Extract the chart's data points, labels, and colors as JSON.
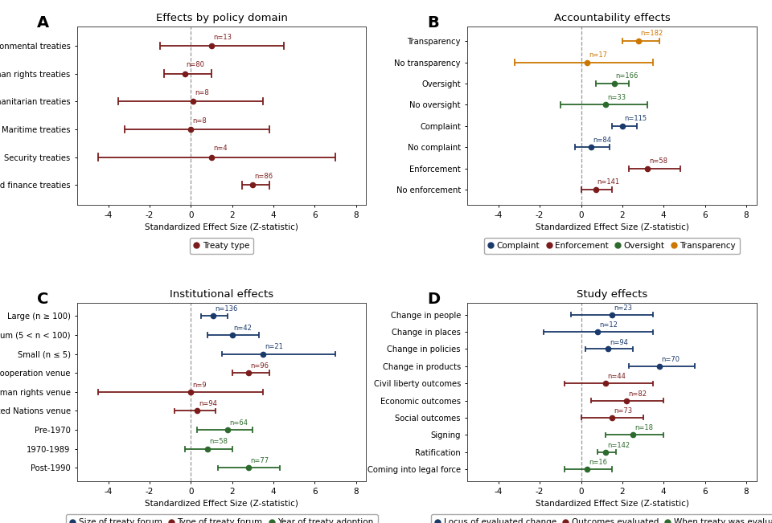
{
  "panel_A": {
    "title": "Effects by policy domain",
    "label": "A",
    "categories": [
      "Environmental treaties",
      "Human rights treaties",
      "Humanitarian treaties",
      "Maritime treaties",
      "Security treaties",
      "Trade and finance treaties"
    ],
    "means": [
      1.0,
      -0.3,
      0.1,
      0.0,
      1.0,
      3.0
    ],
    "ci_low": [
      -1.5,
      -1.3,
      -3.5,
      -3.2,
      -4.5,
      2.5
    ],
    "ci_high": [
      4.5,
      1.0,
      3.5,
      3.8,
      7.0,
      3.8
    ],
    "ns": [
      "n=13",
      "n=80",
      "n=8",
      "n=8",
      "n=4",
      "n=86"
    ],
    "color": "#7B1C1C",
    "xlim": [
      -5.5,
      8.5
    ],
    "xticks": [
      -4,
      -2,
      0,
      2,
      4,
      6,
      8
    ],
    "xlabel": "Standardized Effect Size (Z-statistic)",
    "legend_label": "Treaty type"
  },
  "panel_B": {
    "title": "Accountability effects",
    "label": "B",
    "categories": [
      "Transparency",
      "No transparency",
      "Oversight",
      "No oversight",
      "Complaint",
      "No complaint",
      "Enforcement",
      "No enforcement"
    ],
    "means": [
      2.8,
      0.3,
      1.6,
      1.2,
      2.0,
      0.5,
      3.2,
      0.7
    ],
    "ci_low": [
      2.0,
      -3.2,
      0.7,
      -1.0,
      1.5,
      -0.3,
      2.3,
      0.0
    ],
    "ci_high": [
      3.8,
      3.5,
      2.3,
      3.2,
      2.7,
      1.4,
      4.8,
      1.5
    ],
    "ns": [
      "n=182",
      "n=17",
      "n=166",
      "n=33",
      "n=115",
      "n=84",
      "n=58",
      "n=141"
    ],
    "colors": [
      "#CC7700",
      "#CC7700",
      "#2D6A2D",
      "#2D6A2D",
      "#1A3A6B",
      "#1A3A6B",
      "#7B1C1C",
      "#7B1C1C"
    ],
    "xlim": [
      -5.5,
      8.5
    ],
    "xticks": [
      -4,
      -2,
      0,
      2,
      4,
      6,
      8
    ],
    "xlabel": "Standardized Effect Size (Z-statistic)",
    "legend_entries": [
      {
        "label": "Complaint",
        "color": "#1A3A6B"
      },
      {
        "label": "Enforcement",
        "color": "#7B1C1C"
      },
      {
        "label": "Oversight",
        "color": "#2D6A2D"
      },
      {
        "label": "Transparency",
        "color": "#CC7700"
      }
    ]
  },
  "panel_C": {
    "title": "Institutional effects",
    "label": "C",
    "categories": [
      "Large (n ≥ 100)",
      "Medium (5 < n < 100)",
      "Small (n ≤ 5)",
      "Econ cooperation venue",
      "Human rights venue",
      "United Nations venue",
      "Pre-1970",
      "1970-1989",
      "Post-1990"
    ],
    "means": [
      1.1,
      2.0,
      3.5,
      2.8,
      0.0,
      0.3,
      1.8,
      0.8,
      2.8
    ],
    "ci_low": [
      0.5,
      0.8,
      1.5,
      2.0,
      -4.5,
      -0.8,
      0.3,
      -0.3,
      1.3
    ],
    "ci_high": [
      1.8,
      3.3,
      7.0,
      3.8,
      3.5,
      1.2,
      3.0,
      2.0,
      4.3
    ],
    "ns": [
      "n=136",
      "n=42",
      "n=21",
      "n=96",
      "n=9",
      "n=94",
      "n=64",
      "n=58",
      "n=77"
    ],
    "colors": [
      "#1A3A6B",
      "#1A3A6B",
      "#1A3A6B",
      "#7B1C1C",
      "#7B1C1C",
      "#7B1C1C",
      "#2D6A2D",
      "#2D6A2D",
      "#2D6A2D"
    ],
    "xlim": [
      -5.5,
      8.5
    ],
    "xticks": [
      -4,
      -2,
      0,
      2,
      4,
      6,
      8
    ],
    "xlabel": "Standardized Effect Size (Z-statistic)",
    "legend_entries": [
      {
        "label": "Size of treaty forum",
        "color": "#1A3A6B"
      },
      {
        "label": "Type of treaty forum",
        "color": "#7B1C1C"
      },
      {
        "label": "Year of treaty adoption",
        "color": "#2D6A2D"
      }
    ]
  },
  "panel_D": {
    "title": "Study effects",
    "label": "D",
    "categories": [
      "Change in people",
      "Change in places",
      "Change in policies",
      "Change in products",
      "Civil liberty outcomes",
      "Economic outcomes",
      "Social outcomes",
      "Signing",
      "Ratification",
      "Coming into legal force"
    ],
    "means": [
      1.5,
      0.8,
      1.3,
      3.8,
      1.2,
      2.2,
      1.5,
      2.5,
      1.2,
      0.3
    ],
    "ci_low": [
      -0.5,
      -1.8,
      0.2,
      2.3,
      -0.8,
      0.5,
      0.0,
      1.2,
      0.8,
      -0.8
    ],
    "ci_high": [
      3.5,
      3.5,
      2.5,
      5.5,
      3.5,
      4.0,
      3.0,
      4.0,
      1.7,
      1.5
    ],
    "ns": [
      "n=23",
      "n=12",
      "n=94",
      "n=70",
      "n=44",
      "n=82",
      "n=73",
      "n=18",
      "n=142",
      "n=16"
    ],
    "colors": [
      "#1A3A6B",
      "#1A3A6B",
      "#1A3A6B",
      "#1A3A6B",
      "#7B1C1C",
      "#7B1C1C",
      "#7B1C1C",
      "#2D6A2D",
      "#2D6A2D",
      "#2D6A2D"
    ],
    "xlim": [
      -5.5,
      8.5
    ],
    "xticks": [
      -4,
      -2,
      0,
      2,
      4,
      6,
      8
    ],
    "xlabel": "Standardized Effect Size (Z-statistic)",
    "legend_entries": [
      {
        "label": "Locus of evaluated change",
        "color": "#1A3A6B"
      },
      {
        "label": "Outcomes evaluated",
        "color": "#7B1C1C"
      },
      {
        "label": "When treaty was evaluated",
        "color": "#2D6A2D"
      }
    ]
  },
  "bg_color": "#ffffff"
}
